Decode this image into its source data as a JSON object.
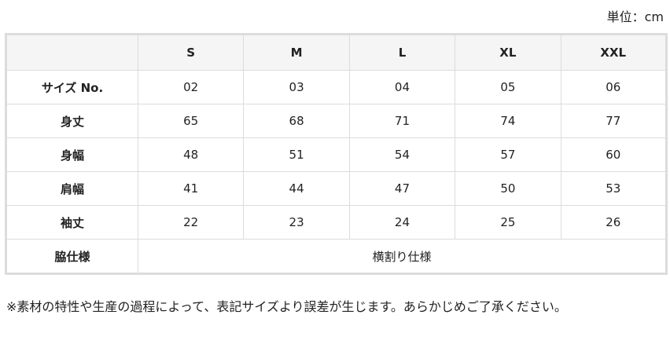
{
  "unit_label": "単位：cm",
  "table": {
    "headers": [
      "",
      "S",
      "M",
      "L",
      "XL",
      "XXL"
    ],
    "rows": [
      {
        "label": "サイズ No.",
        "values": [
          "02",
          "03",
          "04",
          "05",
          "06"
        ]
      },
      {
        "label": "身丈",
        "values": [
          "65",
          "68",
          "71",
          "74",
          "77"
        ]
      },
      {
        "label": "身幅",
        "values": [
          "48",
          "51",
          "54",
          "57",
          "60"
        ]
      },
      {
        "label": "肩幅",
        "values": [
          "41",
          "44",
          "47",
          "50",
          "53"
        ]
      },
      {
        "label": "袖丈",
        "values": [
          "22",
          "23",
          "24",
          "25",
          "26"
        ]
      }
    ],
    "side_spec": {
      "label": "脇仕様",
      "value": "横割り仕様"
    }
  },
  "note": "※素材の特性や生産の過程によって、表記サイズより誤差が生じます。あらかじめご了承ください。"
}
